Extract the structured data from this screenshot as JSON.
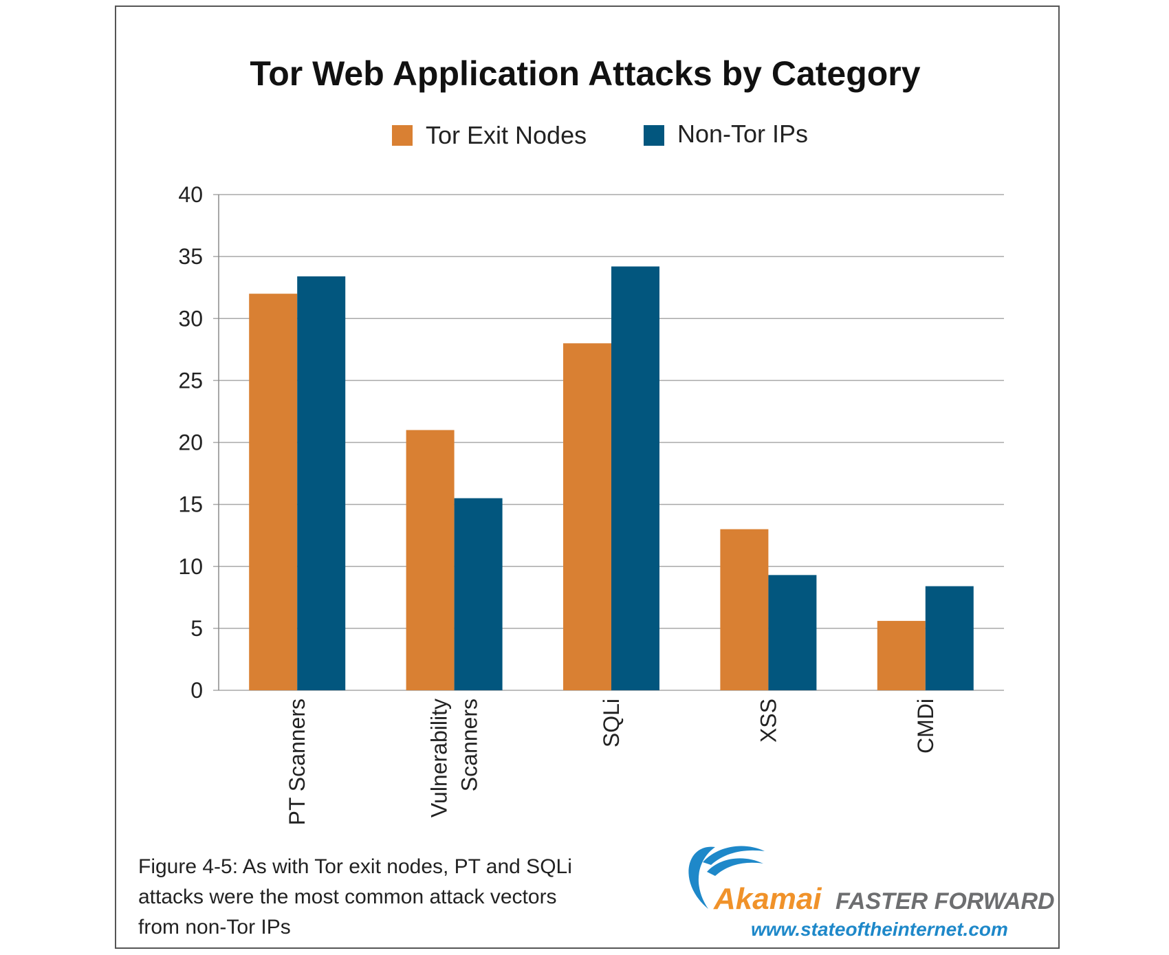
{
  "chart_data": {
    "type": "bar",
    "title": "Tor Web Application Attacks by Category",
    "categories": [
      "PT Scanners",
      "Vulnerability Scanners",
      "SQLi",
      "XSS",
      "CMDi"
    ],
    "category_lines": [
      [
        "PT Scanners"
      ],
      [
        "Vulnerability",
        "Scanners"
      ],
      [
        "SQLi"
      ],
      [
        "XSS"
      ],
      [
        "CMDi"
      ]
    ],
    "series": [
      {
        "name": "Tor Exit Nodes",
        "values": [
          32,
          21,
          28,
          13,
          5.6
        ],
        "color": "#D98033"
      },
      {
        "name": "Non-Tor IPs",
        "values": [
          33.4,
          15.5,
          34.2,
          9.3,
          8.4
        ],
        "color": "#02567E"
      }
    ],
    "ylim": [
      0,
      40
    ],
    "yticks": [
      "0",
      "5",
      "10",
      "15",
      "20",
      "25",
      "30",
      "35",
      "40"
    ],
    "grid": true,
    "legend_position": "top-center",
    "xlabel": "",
    "ylabel": ""
  },
  "caption": {
    "lines": [
      "Figure 4-5: As with Tor exit nodes, PT and SQLi",
      "attacks were the most common attack vectors",
      "from non-Tor IPs"
    ]
  },
  "logo": {
    "brand": "Akamai",
    "tagline": "FASTER FORWARD",
    "url": "www.stateoftheinternet.com",
    "brand_color": "#F0922A",
    "accent_color": "#1E88C9",
    "tagline_color": "#6D6E70"
  }
}
